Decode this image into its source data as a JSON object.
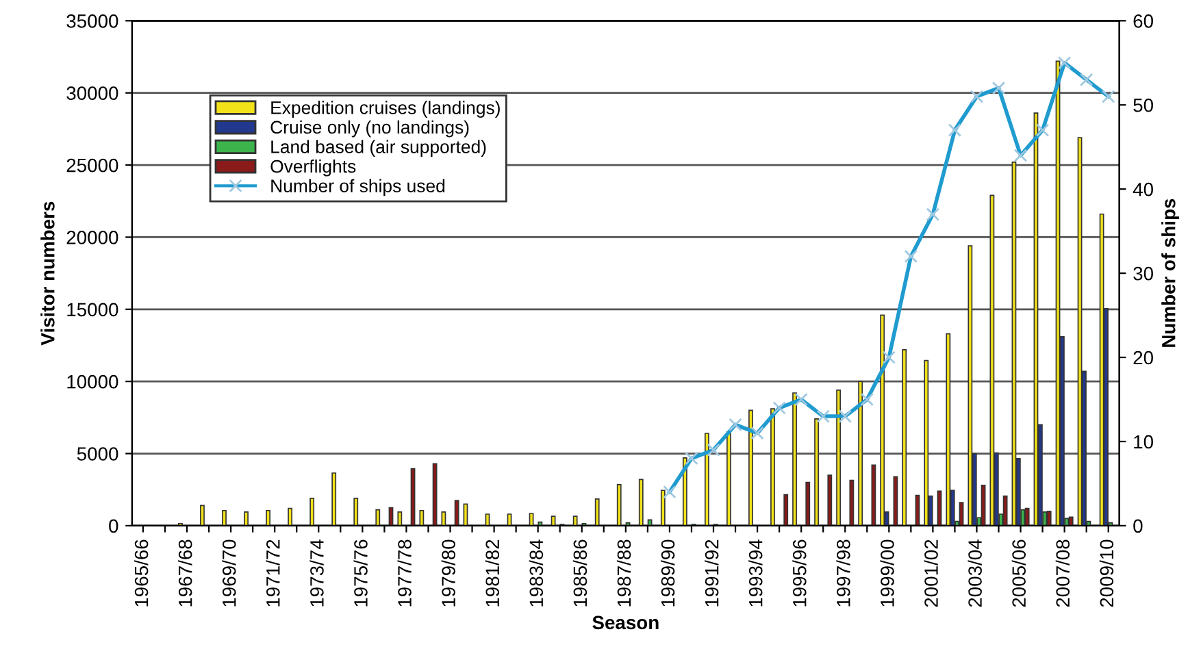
{
  "chart_data": {
    "type": "bar",
    "xlabel": "Season",
    "ylabel": "Visitor numbers",
    "y2label": "Number of ships",
    "categories": [
      "1965/66",
      null,
      "1967/68",
      null,
      "1969/70",
      null,
      "1971/72",
      null,
      "1973/74",
      null,
      "1975/76",
      null,
      "1977/78",
      null,
      "1979/80",
      null,
      "1981/82",
      null,
      "1983/84",
      null,
      "1985/86",
      null,
      "1987/88",
      null,
      "1989/90",
      null,
      "1991/92",
      null,
      "1993/94",
      null,
      "1995/96",
      null,
      "1997/98",
      null,
      "1999/00",
      null,
      "2001/02",
      null,
      "2003/04",
      null,
      "2005/06",
      null,
      "2007/08",
      null,
      "2009/10"
    ],
    "series": [
      {
        "name": "Expedition cruises (landings)",
        "color": "#f2e21a",
        "values": [
          null,
          null,
          150,
          1400,
          1050,
          950,
          1050,
          1200,
          1900,
          3650,
          1900,
          1100,
          950,
          1050,
          950,
          1500,
          800,
          800,
          850,
          650,
          650,
          1850,
          2850,
          3200,
          2450,
          4700,
          6400,
          6500,
          8000,
          8100,
          9200,
          7400,
          9400,
          10000,
          14600,
          12200,
          11450,
          13300,
          19400,
          22900,
          25200,
          28600,
          32200,
          26900,
          21600
        ]
      },
      {
        "name": "Cruise only (no landings)",
        "color": "#22388f",
        "values": [
          null,
          null,
          null,
          null,
          null,
          null,
          null,
          null,
          null,
          null,
          null,
          null,
          null,
          null,
          null,
          null,
          null,
          null,
          null,
          null,
          null,
          null,
          null,
          null,
          null,
          null,
          null,
          null,
          null,
          null,
          null,
          null,
          null,
          null,
          950,
          null,
          2050,
          2450,
          5000,
          5050,
          4650,
          7000,
          13100,
          10700,
          15050
        ]
      },
      {
        "name": "Land based (air supported)",
        "color": "#3cb44b",
        "values": [
          null,
          null,
          null,
          null,
          null,
          null,
          null,
          null,
          null,
          null,
          null,
          null,
          null,
          null,
          null,
          null,
          null,
          null,
          250,
          100,
          150,
          null,
          200,
          400,
          null,
          100,
          100,
          null,
          null,
          null,
          null,
          null,
          null,
          null,
          null,
          null,
          null,
          300,
          550,
          800,
          1100,
          950,
          500,
          300,
          200
        ]
      },
      {
        "name": "Overflights",
        "color": "#8b1a1a",
        "values": [
          null,
          null,
          null,
          null,
          null,
          null,
          null,
          null,
          null,
          null,
          null,
          1250,
          3950,
          4300,
          1750,
          null,
          null,
          null,
          null,
          null,
          null,
          null,
          null,
          null,
          null,
          null,
          null,
          null,
          null,
          2150,
          3000,
          3500,
          3150,
          4200,
          3400,
          2100,
          2400,
          1600,
          2800,
          2050,
          1200,
          1000,
          600,
          null,
          null
        ]
      },
      {
        "name": "Number of ships used",
        "type": "line",
        "axis": "y2",
        "color": "#1f9bcf",
        "marker": "cross",
        "values": [
          null,
          null,
          null,
          null,
          null,
          null,
          null,
          null,
          null,
          null,
          null,
          null,
          null,
          null,
          null,
          null,
          null,
          null,
          null,
          null,
          null,
          null,
          null,
          null,
          4,
          8,
          9,
          12,
          11,
          14,
          15,
          13,
          13,
          15,
          20,
          32,
          37,
          47,
          51,
          52,
          44,
          47,
          55,
          53,
          51
        ]
      }
    ],
    "ylim": [
      0,
      35000
    ],
    "yticks": [
      0,
      5000,
      10000,
      15000,
      20000,
      25000,
      30000,
      35000
    ],
    "y2lim": [
      0,
      60
    ],
    "y2ticks": [
      0,
      10,
      20,
      30,
      40,
      50,
      60
    ],
    "grid": "y",
    "legend": "top left"
  }
}
